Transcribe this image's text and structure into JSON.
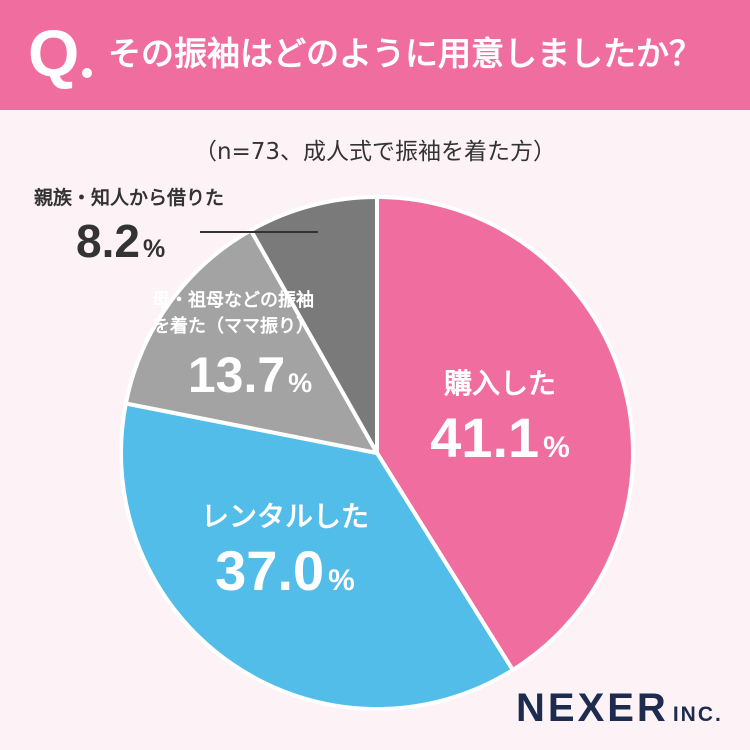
{
  "header": {
    "q_mark": "Q",
    "question": "その振袖はどのように用意しましたか？"
  },
  "subtitle": "（n=73、成人式で振袖を着た方）",
  "logo": {
    "name": "NEXER",
    "suffix": "INC."
  },
  "colors": {
    "header_bg": "#f06e9f",
    "background": "#fdf3f6",
    "purchased": "#f06e9f",
    "rented": "#53bde9",
    "mama_furi": "#a3a3a3",
    "borrowed": "#7a7a7a"
  },
  "chart_data": {
    "type": "pie",
    "start_angle": "12 o'clock, clockwise",
    "slices": [
      {
        "label": "購入した",
        "value": 41.1,
        "display": "41.1",
        "unit": "%",
        "color": "#f06e9f"
      },
      {
        "label": "レンタルした",
        "value": 37.0,
        "display": "37.0",
        "unit": "%",
        "color": "#53bde9"
      },
      {
        "label": "母・祖母などの振袖を着た（ママ振り）",
        "label_lines": [
          "母・祖母などの振袖",
          "を着た（ママ振り）"
        ],
        "value": 13.7,
        "display": "13.7",
        "unit": "%",
        "color": "#a3a3a3"
      },
      {
        "label": "親族・知人から借りた",
        "value": 8.2,
        "display": "8.2",
        "unit": "%",
        "color": "#7a7a7a"
      }
    ]
  }
}
